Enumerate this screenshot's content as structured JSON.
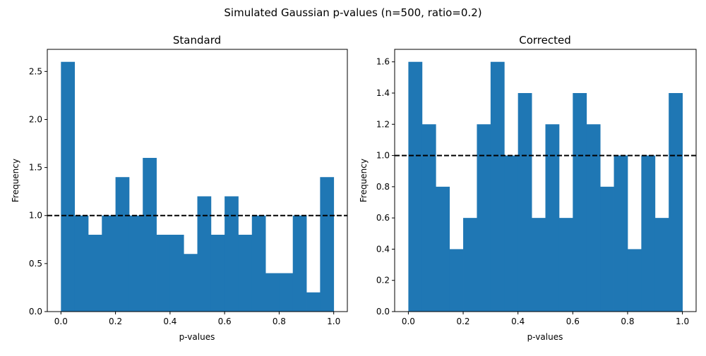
{
  "figure": {
    "suptitle": "Simulated Gaussian p-values (n=500, ratio=0.2)"
  },
  "colors": {
    "bar": "#1f77b4",
    "reference_line": "#000000",
    "axes": "#000000"
  },
  "chart_data": [
    {
      "type": "bar",
      "title": "Standard",
      "xlabel": "p-values",
      "ylabel": "Frequency",
      "bin_edges": [
        0.0,
        0.05,
        0.1,
        0.15,
        0.2,
        0.25,
        0.3,
        0.35,
        0.4,
        0.45,
        0.5,
        0.55,
        0.6,
        0.65,
        0.7,
        0.75,
        0.8,
        0.85,
        0.9,
        0.95,
        1.0
      ],
      "values": [
        2.6,
        1.0,
        0.8,
        1.0,
        1.4,
        1.0,
        1.6,
        0.8,
        0.8,
        0.6,
        1.2,
        0.8,
        1.2,
        0.8,
        1.0,
        0.4,
        0.4,
        1.0,
        0.2,
        1.4
      ],
      "reference_line": {
        "y": 1.0,
        "style": "dashed"
      },
      "xlim": [
        -0.05,
        1.05
      ],
      "ylim": [
        0,
        2.73
      ],
      "xticks": [
        0.0,
        0.2,
        0.4,
        0.6,
        0.8,
        1.0
      ],
      "xtick_labels": [
        "0.0",
        "0.2",
        "0.4",
        "0.6",
        "0.8",
        "1.0"
      ],
      "yticks": [
        0.0,
        0.5,
        1.0,
        1.5,
        2.0,
        2.5
      ],
      "ytick_labels": [
        "0.0",
        "0.5",
        "1.0",
        "1.5",
        "2.0",
        "2.5"
      ],
      "grid": false,
      "legend": "none"
    },
    {
      "type": "bar",
      "title": "Corrected",
      "xlabel": "p-values",
      "ylabel": "Frequency",
      "bin_edges": [
        0.0,
        0.05,
        0.1,
        0.15,
        0.2,
        0.25,
        0.3,
        0.35,
        0.4,
        0.45,
        0.5,
        0.55,
        0.6,
        0.65,
        0.7,
        0.75,
        0.8,
        0.85,
        0.9,
        0.95,
        1.0
      ],
      "values": [
        1.6,
        1.2,
        0.8,
        0.4,
        0.6,
        1.2,
        1.6,
        1.0,
        1.4,
        0.6,
        1.2,
        0.6,
        1.4,
        1.2,
        0.8,
        1.0,
        0.4,
        1.0,
        0.6,
        1.4
      ],
      "reference_line": {
        "y": 1.0,
        "style": "dashed"
      },
      "xlim": [
        -0.05,
        1.05
      ],
      "ylim": [
        0,
        1.68
      ],
      "xticks": [
        0.0,
        0.2,
        0.4,
        0.6,
        0.8,
        1.0
      ],
      "xtick_labels": [
        "0.0",
        "0.2",
        "0.4",
        "0.6",
        "0.8",
        "1.0"
      ],
      "yticks": [
        0.0,
        0.2,
        0.4,
        0.6,
        0.8,
        1.0,
        1.2,
        1.4,
        1.6
      ],
      "ytick_labels": [
        "0.0",
        "0.2",
        "0.4",
        "0.6",
        "0.8",
        "1.0",
        "1.2",
        "1.4",
        "1.6"
      ],
      "grid": false,
      "legend": "none"
    }
  ]
}
